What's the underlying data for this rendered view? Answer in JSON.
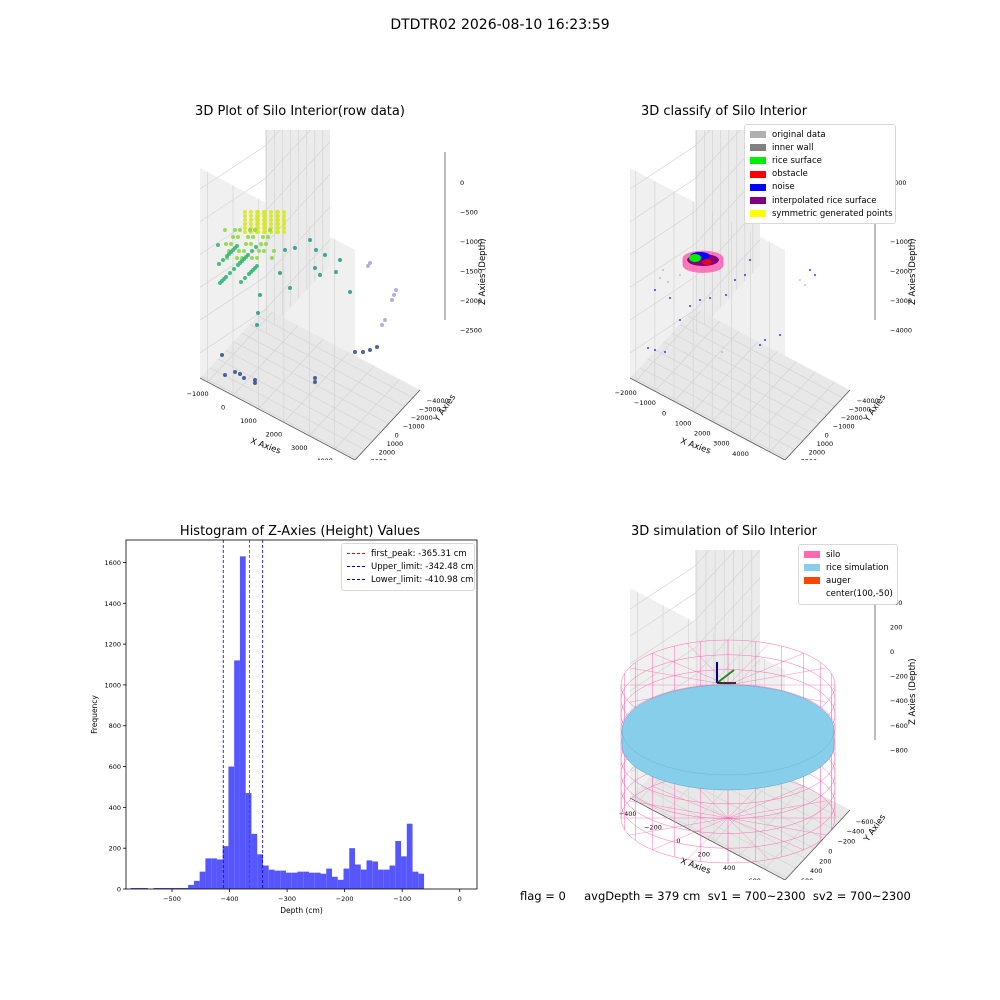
{
  "figure_title": "DTDTR02 2026-08-10 16:23:59",
  "colors": {
    "original": "#b0b0b0",
    "inner_wall": "#808080",
    "rice_surface": "#00ee00",
    "obstacle": "#ff0000",
    "noise": "#0000ff",
    "interpolated": "#800080",
    "symmetric": "#ffff00",
    "silo": "#ff69b4",
    "rice_sim": "#87ceeb",
    "auger": "#ff4500",
    "hist_bar": "#4d4dff",
    "peak_line": "#ff0000",
    "limit_line": "#0000cc"
  },
  "panel1": {
    "title": "3D Plot of Silo Interior(row data)",
    "xlabel": "X Axies",
    "ylabel": "Y Axies",
    "zlabel": "Z Axies (Depth)",
    "xticks": [
      "−1000",
      "0",
      "1000",
      "2000",
      "3000",
      "4000"
    ],
    "yticks": [
      "−4000",
      "−3000",
      "−2000",
      "−1000",
      "0",
      "1000",
      "2000",
      "3000"
    ],
    "zticks": [
      "0",
      "−500",
      "−1000",
      "−1500",
      "−2000",
      "−2500"
    ]
  },
  "panel2": {
    "title": "3D classify of Silo Interior",
    "xlabel": "X Axies",
    "ylabel": "Y Axies",
    "zlabel": "Z Axies (Depth)",
    "xticks": [
      "−2000",
      "−1000",
      "0",
      "1000",
      "2000",
      "3000",
      "4000",
      "5000"
    ],
    "yticks": [
      "−4000",
      "−3000",
      "−2000",
      "−1000",
      "0",
      "1000",
      "2000",
      "3000"
    ],
    "zticks": [
      "1000",
      "0",
      "−1000",
      "−2000",
      "−3000",
      "−4000"
    ],
    "legend": [
      "original data",
      "inner wall",
      "rice surface",
      "obstacle",
      "noise",
      "interpolated rice surface",
      "symmetric generated points"
    ]
  },
  "panel3": {
    "title": "Histogram of Z-Axies (Height) Values",
    "xlabel": "Depth (cm)",
    "ylabel": "Frequency",
    "legend": [
      "first_peak: -365.31 cm",
      "Upper_limit: -342.48 cm",
      "Lower_limit: -410.98 cm"
    ]
  },
  "panel4": {
    "title": "3D simulation of Silo Interior",
    "xlabel": "X Axies",
    "ylabel": "Y Axies",
    "zlabel": "Z Axies (Depth)",
    "xticks": [
      "−400",
      "−200",
      "0",
      "200",
      "400",
      "600"
    ],
    "yticks": [
      "−600",
      "−400",
      "−200",
      "0",
      "200",
      "400",
      "600"
    ],
    "zticks": [
      "400",
      "200",
      "0",
      "−200",
      "−400",
      "−600",
      "−800"
    ],
    "legend": [
      "silo",
      "rice simulation",
      "auger",
      "center(100,-50)"
    ]
  },
  "footer": "flag = 0     avgDepth = 379 cm  sv1 = 700~2300  sv2 = 700~2300",
  "chart_data": [
    {
      "type": "scatter",
      "title": "3D Plot of Silo Interior(row data)",
      "xlabel": "X Axies",
      "ylabel": "Y Axies",
      "zlabel": "Z Axies (Depth)",
      "xlim": [
        -1000,
        4000
      ],
      "ylim": [
        -4000,
        3000
      ],
      "zlim": [
        -2500,
        0
      ],
      "grid": true
    },
    {
      "type": "scatter",
      "title": "3D classify of Silo Interior",
      "xlabel": "X Axies",
      "ylabel": "Y Axies",
      "zlabel": "Z Axies (Depth)",
      "xlim": [
        -2000,
        5000
      ],
      "ylim": [
        -4000,
        3000
      ],
      "zlim": [
        -4000,
        1000
      ],
      "legend_position": "top-right",
      "grid": true
    },
    {
      "type": "bar",
      "title": "Histogram of Z-Axies (Height) Values",
      "xlabel": "Depth (cm)",
      "ylabel": "Frequency",
      "xlim": [
        -580,
        30
      ],
      "ylim": [
        0,
        1710
      ],
      "xticks": [
        -500,
        -400,
        -300,
        -200,
        -100,
        0
      ],
      "yticks": [
        0,
        200,
        400,
        600,
        800,
        1000,
        1200,
        1400,
        1600
      ],
      "bin_width": 10,
      "bin_starts": [
        -572,
        -562,
        -552,
        -542,
        -532,
        -522,
        -512,
        -502,
        -492,
        -482,
        -472,
        -462,
        -452,
        -442,
        -432,
        -422,
        -412,
        -402,
        -392,
        -382,
        -372,
        -362,
        -352,
        -342,
        -332,
        -322,
        -312,
        -302,
        -292,
        -282,
        -272,
        -262,
        -252,
        -242,
        -232,
        -222,
        -212,
        -202,
        -192,
        -182,
        -172,
        -162,
        -152,
        -142,
        -132,
        -122,
        -112,
        -102,
        -92,
        -82,
        -72,
        -62,
        -52,
        -42,
        -32,
        -22,
        -12,
        -2
      ],
      "values": [
        5,
        5,
        5,
        0,
        5,
        5,
        5,
        5,
        5,
        5,
        20,
        40,
        85,
        150,
        150,
        145,
        210,
        600,
        1120,
        1630,
        470,
        270,
        170,
        115,
        95,
        90,
        90,
        80,
        80,
        85,
        85,
        80,
        80,
        75,
        100,
        60,
        45,
        100,
        200,
        120,
        95,
        140,
        135,
        95,
        95,
        115,
        235,
        160,
        320,
        85,
        75,
        0,
        0,
        0,
        0,
        0,
        0,
        0
      ],
      "lines": [
        {
          "name": "first_peak: -365.31 cm",
          "x": -365.31,
          "color": "#ff0000"
        },
        {
          "name": "Upper_limit: -342.48 cm",
          "x": -342.48,
          "color": "#0000cc"
        },
        {
          "name": "Lower_limit: -410.98 cm",
          "x": -410.98,
          "color": "#0000cc"
        }
      ],
      "legend_position": "top-right"
    },
    {
      "type": "scatter",
      "title": "3D simulation of Silo Interior",
      "xlabel": "X Axies",
      "ylabel": "Y Axies",
      "zlabel": "Z Axies (Depth)",
      "xlim": [
        -500,
        700
      ],
      "ylim": [
        -700,
        700
      ],
      "zlim": [
        -900,
        500
      ],
      "legend_position": "top-right",
      "grid": true
    }
  ]
}
